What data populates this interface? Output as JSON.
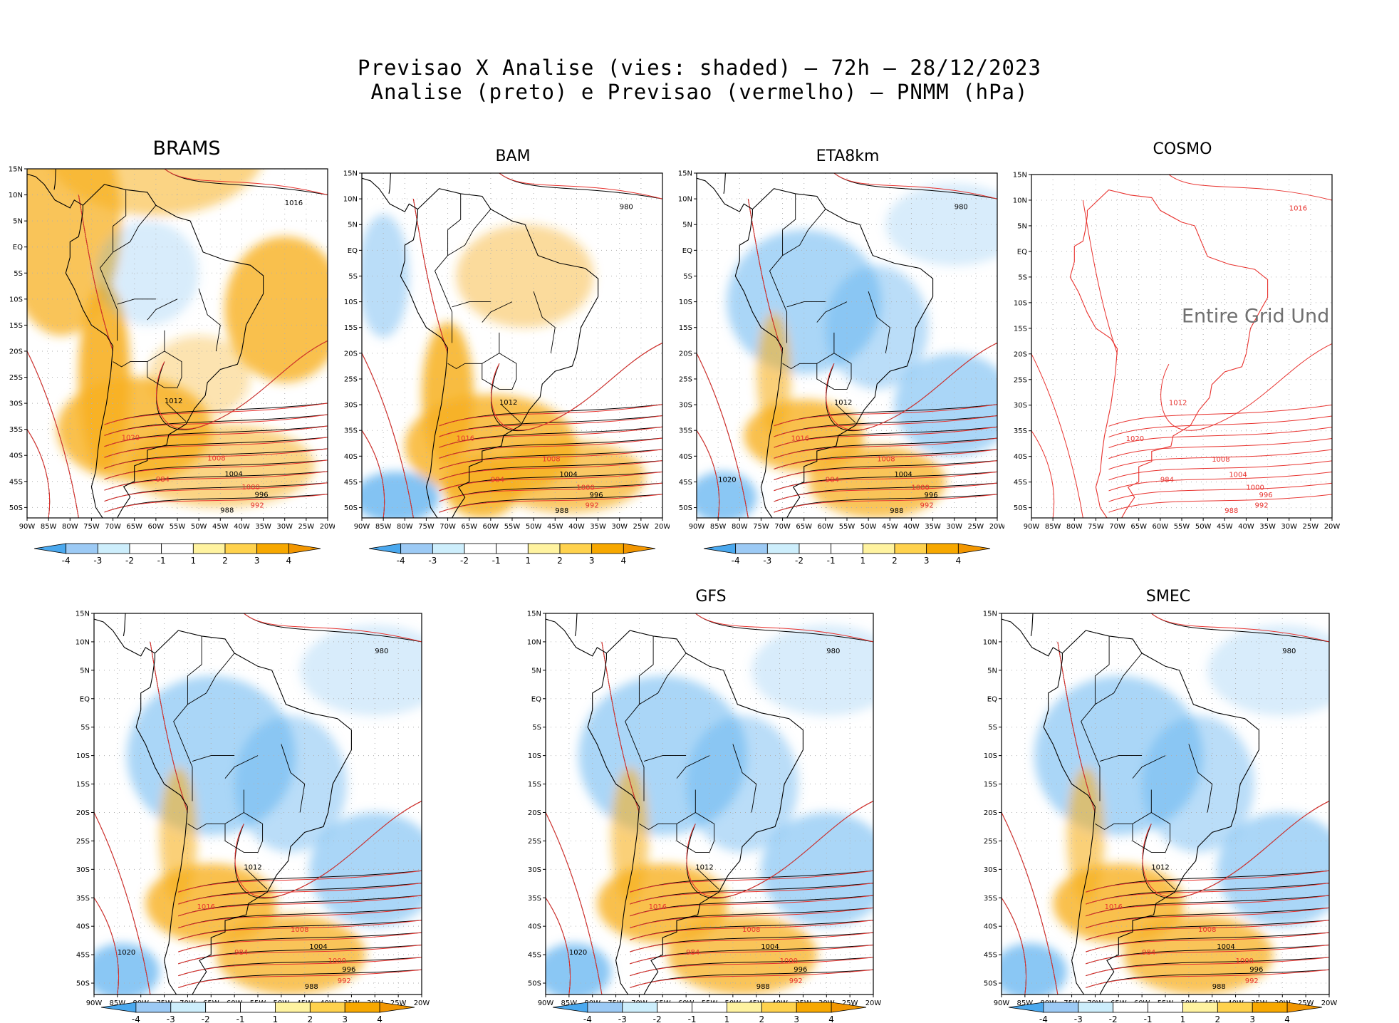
{
  "header": {
    "line1": "Previsao X Analise (vies: shaded) – 72h – 28/12/2023",
    "line2": "Analise (preto) e Previsao (vermelho) – PNMM (hPa)"
  },
  "axes": {
    "lat_labels": [
      "15N",
      "10N",
      "5N",
      "EQ",
      "5S",
      "10S",
      "15S",
      "20S",
      "25S",
      "30S",
      "35S",
      "40S",
      "45S",
      "50S"
    ],
    "lon_labels": [
      "90W",
      "85W",
      "80W",
      "75W",
      "70W",
      "65W",
      "60W",
      "55W",
      "50W",
      "45W",
      "40W",
      "35W",
      "30W",
      "25W",
      "20W"
    ]
  },
  "colorbar": {
    "labels": [
      "-4",
      "-3",
      "-2",
      "-1",
      "1",
      "2",
      "3",
      "4"
    ],
    "colors": [
      "#4aa8ee",
      "#9ccaf5",
      "#cdeefc",
      "#ffffff",
      "#ffffff",
      "#fff3a0",
      "#ffd24d",
      "#f7a800",
      "#f29600"
    ]
  },
  "colors": {
    "analysis": "#000000",
    "forecast": "#e8332f",
    "neg": "#64b4f0",
    "pos": "#f7b021"
  },
  "panels": [
    {
      "id": "brams",
      "title": "BRAMS",
      "big": true,
      "bias": "warm",
      "isobars": [
        "1012",
        "1008",
        "1004",
        "1000",
        "996",
        "992",
        "988",
        "984",
        "1016",
        "1020"
      ]
    },
    {
      "id": "bam",
      "title": "BAM",
      "bias": "mixed",
      "isobars": [
        "1012",
        "1008",
        "1004",
        "1000",
        "996",
        "992",
        "988",
        "984",
        "980",
        "1016"
      ]
    },
    {
      "id": "eta8km",
      "title": "ETA8km",
      "bias": "cold",
      "isobars": [
        "1012",
        "1008",
        "1004",
        "1000",
        "996",
        "992",
        "988",
        "984",
        "980",
        "1016",
        "1020"
      ]
    },
    {
      "id": "cosmo",
      "title": "COSMO",
      "bias": "none",
      "note": "Entire Grid Und",
      "isobars": [
        "1012",
        "1008",
        "1004",
        "1000",
        "996",
        "992",
        "988",
        "984",
        "1016",
        "1020"
      ]
    },
    {
      "id": "unnamed",
      "title": "",
      "bias": "cold",
      "isobars": [
        "1012",
        "1008",
        "1004",
        "1000",
        "996",
        "992",
        "988",
        "984",
        "980",
        "1016",
        "1020"
      ]
    },
    {
      "id": "gfs",
      "title": "GFS",
      "bias": "cold",
      "isobars": [
        "1012",
        "1008",
        "1004",
        "1000",
        "996",
        "992",
        "988",
        "984",
        "980",
        "1016",
        "1020"
      ]
    },
    {
      "id": "smec",
      "title": "SMEC",
      "bias": "cold",
      "isobars": [
        "1012",
        "1008",
        "1004",
        "1000",
        "996",
        "992",
        "988",
        "984",
        "980",
        "1016"
      ]
    }
  ]
}
